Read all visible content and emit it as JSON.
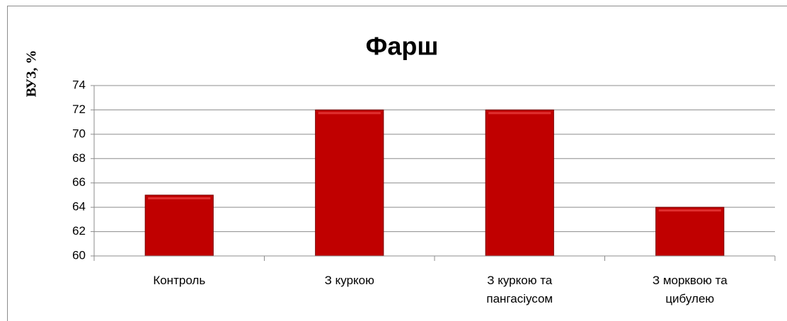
{
  "chart_data": {
    "type": "bar",
    "title": "Фарш",
    "y_label": "ВУЗ, %",
    "categories": [
      "Контроль",
      "З куркою",
      "З куркою та пангасіусом",
      "З морквою та цибулею"
    ],
    "values": [
      65,
      72,
      72,
      64
    ],
    "color": "#c00000",
    "ylim": [
      60,
      74
    ],
    "yticks": [
      60,
      62,
      64,
      66,
      68,
      70,
      72,
      74
    ],
    "grid": true
  }
}
